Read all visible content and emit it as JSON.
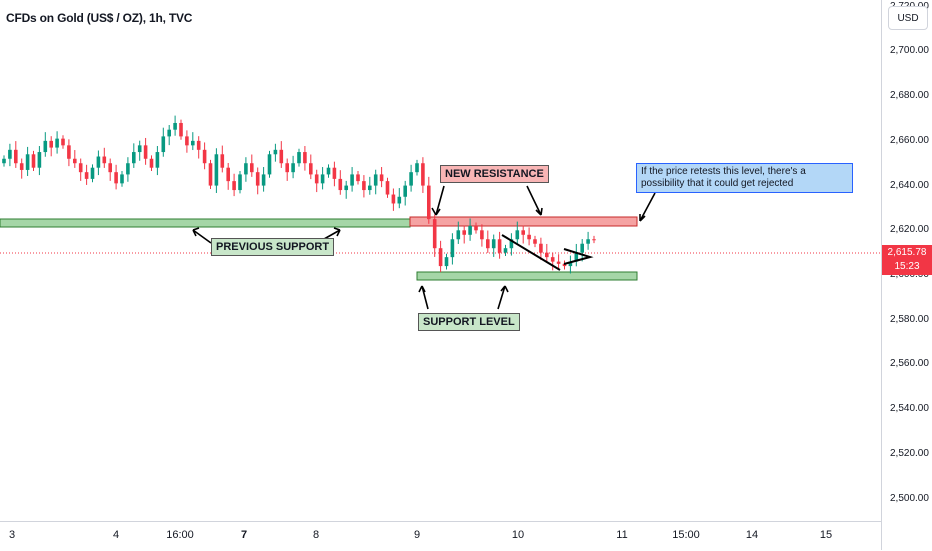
{
  "title": "CFDs on Gold (US$ / OZ), 1h, TVC",
  "currency_button": "USD",
  "last_price": "2,615.78",
  "countdown": "15:23",
  "y_axis": {
    "ticks": [
      "2,720.00",
      "2,700.00",
      "2,680.00",
      "2,660.00",
      "2,640.00",
      "2,620.00",
      "2,600.00",
      "2,580.00",
      "2,560.00",
      "2,540.00",
      "2,520.00",
      "2,500.00"
    ],
    "range": [
      2490,
      2723
    ]
  },
  "x_axis": {
    "ticks": [
      {
        "label": "3",
        "bold": false
      },
      {
        "label": "4",
        "bold": false
      },
      {
        "label": "16:00",
        "bold": false
      },
      {
        "label": "7",
        "bold": true
      },
      {
        "label": "8",
        "bold": false
      },
      {
        "label": "9",
        "bold": false
      },
      {
        "label": "10",
        "bold": false
      },
      {
        "label": "11",
        "bold": false
      },
      {
        "label": "15:00",
        "bold": false
      },
      {
        "label": "14",
        "bold": false
      },
      {
        "label": "15",
        "bold": false
      }
    ]
  },
  "annotations": {
    "previous_support": "PREVIOUS SUPPORT",
    "new_resistance": "NEW RESISTANCE",
    "support_level": "SUPPORT LEVEL",
    "note": "If the price retests this level, there's a possibility that it could get rejected"
  },
  "zones": {
    "previous_support": {
      "from": 2630,
      "to": 2628
    },
    "new_resistance": {
      "from": 2631,
      "to": 2628
    },
    "support_level": {
      "from": 2606,
      "to": 2603
    }
  },
  "colors": {
    "up": "#089981",
    "down": "#f23645",
    "support_zone": "#a5d6a7",
    "resistance_zone": "#f5a3a3",
    "note_bg": "#b3d7f7",
    "price_badge": "#f23645"
  },
  "chart_data": {
    "type": "candlestick",
    "symbol": "CFDs on Gold (US$ / OZ)",
    "interval": "1h",
    "ylim": [
      2490,
      2723
    ],
    "last_price": 2615.78,
    "closes": [
      2652,
      2656,
      2650,
      2647,
      2654,
      2648,
      2655,
      2660,
      2657,
      2661,
      2658,
      2652,
      2650,
      2646,
      2643,
      2648,
      2653,
      2650,
      2646,
      2641,
      2645,
      2650,
      2655,
      2658,
      2652,
      2648,
      2655,
      2662,
      2665,
      2668,
      2662,
      2658,
      2660,
      2656,
      2650,
      2640,
      2654,
      2648,
      2642,
      2638,
      2645,
      2650,
      2646,
      2640,
      2645,
      2654,
      2656,
      2650,
      2646,
      2650,
      2655,
      2650,
      2645,
      2641,
      2645,
      2648,
      2643,
      2638,
      2640,
      2645,
      2642,
      2638,
      2640,
      2645,
      2642,
      2636,
      2632,
      2635,
      2640,
      2646,
      2650,
      2640,
      2625,
      2612,
      2604,
      2608,
      2616,
      2620,
      2618,
      2622,
      2620,
      2616,
      2612,
      2616,
      2610,
      2612,
      2616,
      2620,
      2618,
      2616,
      2614,
      2610,
      2608,
      2606,
      2605,
      2604,
      2606,
      2610,
      2614,
      2616,
      2615.78
    ]
  }
}
